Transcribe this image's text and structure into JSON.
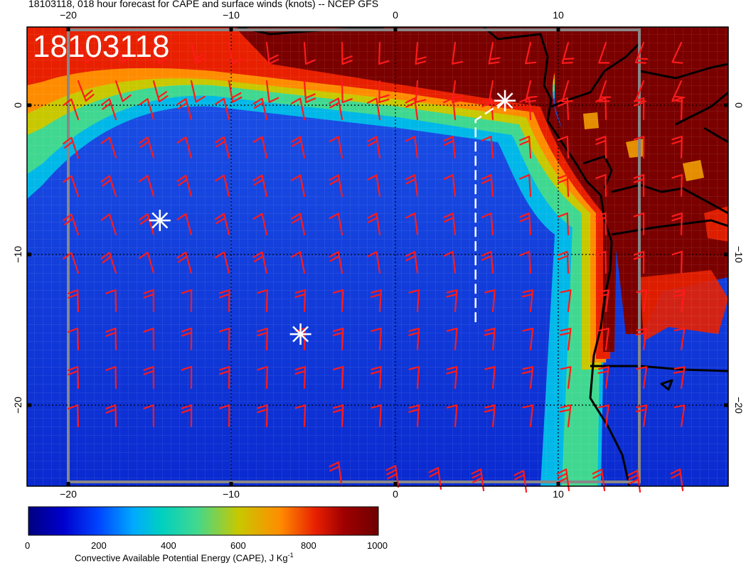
{
  "header": {
    "title": "18103118, 018 hour forecast for CAPE and surface winds (knots) -- NCEP GFS"
  },
  "map": {
    "date_stamp": "18103118",
    "lon_ticks_top": [
      "−20",
      "−10",
      "0",
      "10"
    ],
    "lon_ticks_bottom": [
      "−20",
      "−10",
      "0",
      "10"
    ],
    "lat_ticks_left": [
      "0",
      "−10",
      "−20"
    ],
    "lat_ticks_right": [
      "0",
      "−10",
      "−20"
    ],
    "lon_range": [
      -22.5,
      20.5
    ],
    "lat_range": [
      -24.5,
      5
    ],
    "markers": [
      {
        "name": "star",
        "lon": 6.7,
        "lat": 0.3
      },
      {
        "name": "star",
        "lon": -14.4,
        "lat": -7.7
      },
      {
        "name": "star",
        "lon": -5.8,
        "lat": -15.3
      }
    ],
    "ship_track": [
      [
        4.9,
        -14.5
      ],
      [
        4.9,
        -1.0
      ],
      [
        6.7,
        0.3
      ]
    ]
  },
  "colorbar": {
    "ticks": [
      "0",
      "200",
      "400",
      "600",
      "800",
      "1000"
    ],
    "label": "Convective Available Potential Energy (CAPE), J Kg",
    "label_sup": "-1",
    "colors": [
      "#000080",
      "#0000cd",
      "#0044ff",
      "#00aaff",
      "#00d0c0",
      "#40d890",
      "#c8c800",
      "#ff8c00",
      "#e82000",
      "#a00000",
      "#6e0000"
    ]
  }
}
